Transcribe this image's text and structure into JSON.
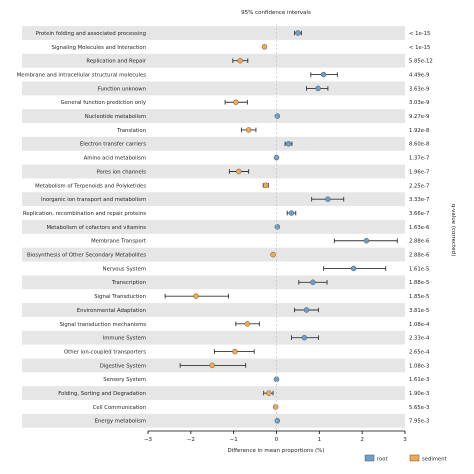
{
  "chart_data": {
    "type": "scatter",
    "title": "95% confidence intervals",
    "xlabel": "Difference in mean proportions (%)",
    "ylabel": "q-value (corrected)",
    "xlim": [
      -3,
      3
    ],
    "xticks": [
      -3,
      -2,
      -1,
      0,
      1,
      2,
      3
    ],
    "xtick_labels": [
      "−3",
      "−2",
      "−1",
      "0",
      "1",
      "2",
      "3"
    ],
    "grid": false,
    "legend_position": "bottom-right",
    "series": [
      {
        "name": "root",
        "color": "#6a9fd0"
      },
      {
        "name": "sediment",
        "color": "#f4a94a"
      }
    ],
    "categories": [
      {
        "label": "Protein folding and associated processing",
        "group": "root",
        "diff": 0.5,
        "ci": [
          0.42,
          0.58
        ],
        "q": "< 1e-15"
      },
      {
        "label": "Signaling Molecules and Interaction",
        "group": "sediment",
        "diff": -0.28,
        "ci": [
          -0.31,
          -0.25
        ],
        "q": "< 1e-15"
      },
      {
        "label": "Replication and Repair",
        "group": "sediment",
        "diff": -0.85,
        "ci": [
          -1.02,
          -0.67
        ],
        "q": "5.85e-12"
      },
      {
        "label": "Membrane and intracellular structural molecules",
        "group": "root",
        "diff": 1.1,
        "ci": [
          0.8,
          1.42
        ],
        "q": "4.49e-9"
      },
      {
        "label": "Function unknown",
        "group": "root",
        "diff": 0.97,
        "ci": [
          0.7,
          1.2
        ],
        "q": "3.63e-9"
      },
      {
        "label": "General function prediction only",
        "group": "sediment",
        "diff": -0.95,
        "ci": [
          -1.2,
          -0.68
        ],
        "q": "3.03e-9"
      },
      {
        "label": "Nucleotide metabolism",
        "group": "root",
        "diff": 0.02,
        "ci": [
          0.0,
          0.04
        ],
        "q": "9.27e-9"
      },
      {
        "label": "Translation",
        "group": "sediment",
        "diff": -0.65,
        "ci": [
          -0.82,
          -0.48
        ],
        "q": "1.92e-8"
      },
      {
        "label": "Electron transfer carriers",
        "group": "root",
        "diff": 0.28,
        "ci": [
          0.2,
          0.36
        ],
        "q": "8.60e-8"
      },
      {
        "label": "Amino acid metabolism",
        "group": "root",
        "diff": 0.0,
        "ci": [
          -0.02,
          0.02
        ],
        "q": "1.37e-7"
      },
      {
        "label": "Pores ion channels",
        "group": "sediment",
        "diff": -0.88,
        "ci": [
          -1.1,
          -0.65
        ],
        "q": "1.96e-7"
      },
      {
        "label": "Metabolism of Terpenoids and Polyketides",
        "group": "sediment",
        "diff": -0.25,
        "ci": [
          -0.31,
          -0.19
        ],
        "q": "2.25e-7"
      },
      {
        "label": "Inorganic ion transport and metabolism",
        "group": "root",
        "diff": 1.2,
        "ci": [
          0.82,
          1.57
        ],
        "q": "3.33e-7"
      },
      {
        "label": "Replication, recombination and repair proteins",
        "group": "root",
        "diff": 0.35,
        "ci": [
          0.25,
          0.45
        ],
        "q": "3.66e-7"
      },
      {
        "label": "Metabolism of cofactors and vitamins",
        "group": "root",
        "diff": 0.02,
        "ci": [
          0.0,
          0.04
        ],
        "q": "1.63e-6"
      },
      {
        "label": "Membrane Transport",
        "group": "root",
        "diff": 2.1,
        "ci": [
          1.35,
          2.82
        ],
        "q": "2.88e-6"
      },
      {
        "label": "Biosynthesis of Other Secondary Metabolites",
        "group": "sediment",
        "diff": -0.08,
        "ci": [
          -0.1,
          -0.06
        ],
        "q": "2.88e-6"
      },
      {
        "label": "Nervous System",
        "group": "root",
        "diff": 1.8,
        "ci": [
          1.1,
          2.55
        ],
        "q": "1.61e-5"
      },
      {
        "label": "Transcription",
        "group": "root",
        "diff": 0.85,
        "ci": [
          0.52,
          1.18
        ],
        "q": "1.88e-5"
      },
      {
        "label": "Signal Transduction",
        "group": "sediment",
        "diff": -1.88,
        "ci": [
          -2.6,
          -1.12
        ],
        "q": "1.85e-5"
      },
      {
        "label": "Environmental Adaptation",
        "group": "root",
        "diff": 0.7,
        "ci": [
          0.42,
          0.98
        ],
        "q": "3.81e-5"
      },
      {
        "label": "Signal transduction mechanisms",
        "group": "sediment",
        "diff": -0.68,
        "ci": [
          -0.95,
          -0.4
        ],
        "q": "1.08e-4"
      },
      {
        "label": "Immune System",
        "group": "root",
        "diff": 0.65,
        "ci": [
          0.35,
          0.98
        ],
        "q": "2.33e-4"
      },
      {
        "label": "Other ion-coupled transporters",
        "group": "sediment",
        "diff": -0.97,
        "ci": [
          -1.45,
          -0.52
        ],
        "q": "2.65e-4"
      },
      {
        "label": "Digestive System",
        "group": "sediment",
        "diff": -1.5,
        "ci": [
          -2.25,
          -0.72
        ],
        "q": "1.08e-3"
      },
      {
        "label": "Sensory System",
        "group": "root",
        "diff": 0.0,
        "ci": [
          -0.02,
          0.02
        ],
        "q": "1.61e-3"
      },
      {
        "label": "Folding, Sorting and Degradation",
        "group": "sediment",
        "diff": -0.18,
        "ci": [
          -0.3,
          -0.08
        ],
        "q": "1.90e-3"
      },
      {
        "label": "Cell Communication",
        "group": "sediment",
        "diff": -0.02,
        "ci": [
          -0.04,
          0.0
        ],
        "q": "5.65e-3"
      },
      {
        "label": "Energy metabolism",
        "group": "root",
        "diff": 0.02,
        "ci": [
          0.0,
          0.04
        ],
        "q": "7.95e-3"
      }
    ]
  }
}
